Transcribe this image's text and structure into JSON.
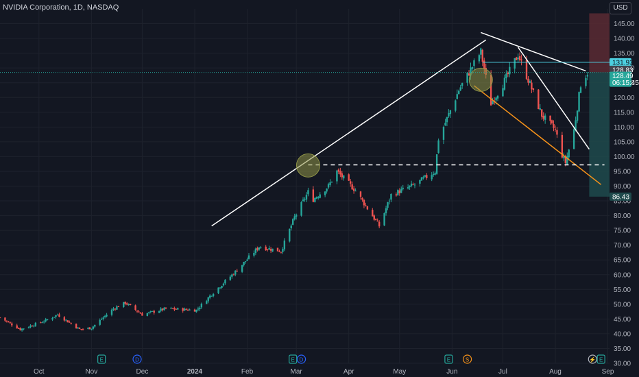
{
  "header": {
    "symbol_title": "NVIDIA Corporation, 1D, NASDAQ",
    "currency": "USD"
  },
  "colors": {
    "background": "#131722",
    "up": "#26a69a",
    "down": "#ef5350",
    "grid": "#1e222d",
    "axis_text": "#b2b5be",
    "trendline": "#ffffff",
    "channel_line": "#f7931a",
    "price_line": "#4dd0e1",
    "target_zone": "#1f4a4c",
    "stop_zone": "#5b2a32",
    "highlight_circle": "#8f9447"
  },
  "chart_data": {
    "type": "candlestick",
    "title": "NVIDIA Corporation, 1D, NASDAQ",
    "ylim": [
      30,
      150
    ],
    "y_ticks": [
      "30.00",
      "35.00",
      "40.00",
      "45.00",
      "50.00",
      "55.00",
      "60.00",
      "65.00",
      "70.00",
      "75.00",
      "80.00",
      "85.00",
      "90.00",
      "95.00",
      "100.00",
      "105.00",
      "110.00",
      "115.00",
      "120.00",
      "125.00",
      "130.00",
      "135.00",
      "140.00",
      "145.00"
    ],
    "x_ticks": [
      "Oct",
      "Nov",
      "Dec",
      "2024",
      "Feb",
      "Mar",
      "Apr",
      "May",
      "Jun",
      "Jul",
      "Aug",
      "Sep"
    ],
    "x_range": [
      "2023-09-08",
      "2024-09-02"
    ],
    "grid": true,
    "price_path": [
      [
        "2023-09-08",
        45.5
      ],
      [
        "2023-09-20",
        41.5
      ],
      [
        "2023-10-05",
        44.5
      ],
      [
        "2023-10-12",
        46.5
      ],
      [
        "2023-10-25",
        41.5
      ],
      [
        "2023-11-01",
        42.0
      ],
      [
        "2023-11-14",
        48.5
      ],
      [
        "2023-11-21",
        50.5
      ],
      [
        "2023-12-01",
        46.5
      ],
      [
        "2023-12-15",
        48.5
      ],
      [
        "2024-01-02",
        48.0
      ],
      [
        "2024-01-12",
        54.0
      ],
      [
        "2024-01-25",
        61.0
      ],
      [
        "2024-02-08",
        69.5
      ],
      [
        "2024-02-21",
        68.0
      ],
      [
        "2024-02-29",
        79.5
      ],
      [
        "2024-03-08",
        88.0
      ],
      [
        "2024-03-11",
        85.5
      ],
      [
        "2024-03-20",
        90.0
      ],
      [
        "2024-03-25",
        95.0
      ],
      [
        "2024-04-05",
        88.5
      ],
      [
        "2024-04-19",
        76.5
      ],
      [
        "2024-04-26",
        87.0
      ],
      [
        "2024-05-10",
        90.5
      ],
      [
        "2024-05-22",
        95.0
      ],
      [
        "2024-05-24",
        106.0
      ],
      [
        "2024-06-05",
        122.5
      ],
      [
        "2024-06-18",
        135.5
      ],
      [
        "2024-06-24",
        118.0
      ],
      [
        "2024-07-01",
        124.5
      ],
      [
        "2024-07-10",
        134.5
      ],
      [
        "2024-07-16",
        126.0
      ],
      [
        "2024-07-24",
        114.0
      ],
      [
        "2024-08-01",
        109.0
      ],
      [
        "2024-08-05",
        100.5
      ],
      [
        "2024-08-07",
        98.0
      ],
      [
        "2024-08-12",
        109.0
      ],
      [
        "2024-08-16",
        124.5
      ],
      [
        "2024-08-20",
        128.5
      ]
    ],
    "annotations": {
      "last_price": 128.49,
      "last_price_label": "128.49",
      "countdown": "06:15:45",
      "horizontal_line_price": 131.93,
      "horizontal_line_label": "131.93",
      "prev_close_label": "128.83",
      "target_low_label": "86.43",
      "target_low_price": 86.43,
      "target_high_price": 148.5,
      "dashed_support_price": 97.2,
      "long_trendline": [
        [
          "2024-01-11",
          76.5
        ],
        [
          "2024-06-21",
          139.5
        ]
      ],
      "upper_downtrend_line": [
        [
          "2024-06-18",
          142.0
        ],
        [
          "2024-08-19",
          129.0
        ]
      ],
      "inner_downtrend_line": [
        [
          "2024-07-10",
          137.0
        ],
        [
          "2024-08-21",
          102.5
        ]
      ],
      "channel_line": [
        [
          "2024-06-14",
          124.0
        ],
        [
          "2024-08-28",
          90.5
        ]
      ],
      "circles": [
        [
          "2024-03-08",
          97.0
        ],
        [
          "2024-06-18",
          126.0
        ]
      ],
      "event_markers": [
        {
          "date": "2023-11-07",
          "label": "E"
        },
        {
          "date": "2023-11-28",
          "label": "D"
        },
        {
          "date": "2024-02-28",
          "label": "E"
        },
        {
          "date": "2024-03-04",
          "label": "D"
        },
        {
          "date": "2024-05-30",
          "label": "E"
        },
        {
          "date": "2024-06-10",
          "label": "S"
        },
        {
          "date": "2024-08-23",
          "label": "⚡"
        },
        {
          "date": "2024-08-28",
          "label": "E"
        }
      ]
    }
  }
}
